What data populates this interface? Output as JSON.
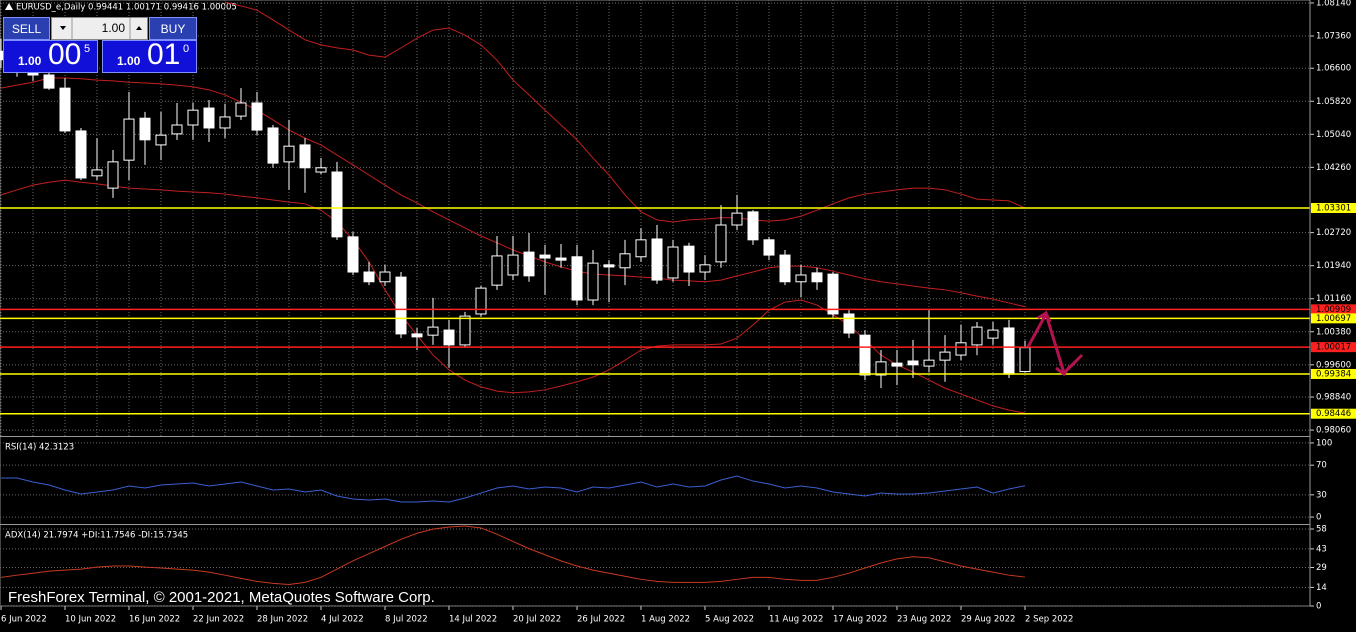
{
  "header": {
    "symbol_line": "EURUSD_e,Daily  0.99441 1.00171 0.99416 1.00005"
  },
  "trade_panel": {
    "sell": "SELL",
    "buy": "BUY",
    "lot": "1.00",
    "bid": {
      "big": "1.00",
      "pips": "00",
      "point": "5"
    },
    "ask": {
      "big": "1.00",
      "pips": "01",
      "point": "0"
    }
  },
  "watermark": "FreshForex Terminal, © 2001-2021, MetaQuotes Software Corp.",
  "chart_data": [
    {
      "type": "candlestick",
      "categories": [
        "6 Jun 2022",
        null,
        null,
        null,
        "10 Jun 2022",
        null,
        null,
        null,
        "16 Jun 2022",
        null,
        null,
        null,
        "22 Jun 2022",
        null,
        null,
        null,
        "28 Jun 2022",
        null,
        null,
        null,
        "4 Jul 2022",
        null,
        null,
        null,
        "8 Jul 2022",
        null,
        null,
        null,
        "14 Jul 2022",
        null,
        null,
        null,
        "20 Jul 2022",
        null,
        null,
        null,
        "26 Jul 2022",
        null,
        null,
        null,
        "1 Aug 2022",
        null,
        null,
        null,
        "5 Aug 2022",
        null,
        null,
        null,
        "11 Aug 2022",
        null,
        null,
        null,
        "17 Aug 2022",
        null,
        null,
        null,
        "23 Aug 2022",
        null,
        null,
        null,
        "29 Aug 2022",
        null,
        null,
        null,
        "2 Sep 2022"
      ],
      "open": [
        1.07,
        1.068,
        1.066,
        1.0644,
        1.0613,
        1.0512,
        1.0406,
        1.0377,
        1.0443,
        1.0542,
        1.0479,
        1.0505,
        1.0526,
        1.0566,
        1.0519,
        1.0547,
        1.0578,
        1.0519,
        1.0439,
        1.0479,
        1.0415,
        1.0415,
        1.0262,
        1.0179,
        1.0156,
        1.0167,
        1.0033,
        1.003,
        1.0042,
        1.0007,
        1.008,
        1.0148,
        1.0172,
        1.0226,
        1.0219,
        1.0212,
        1.0215,
        1.0113,
        1.0196,
        1.0189,
        1.0215,
        1.0257,
        1.0165,
        1.024,
        1.0179,
        1.0203,
        1.029,
        1.0321,
        1.0255,
        1.0219,
        1.0156,
        1.0177,
        1.0174,
        1.008,
        1.003,
        0.9936,
        0.9964,
        0.9969,
        0.9957,
        0.9971,
        0.9983,
        1.0007,
        1.0023,
        1.0047,
        0.99441
      ],
      "high": [
        1.073,
        1.07,
        1.068,
        1.0656,
        1.0637,
        1.0519,
        1.0495,
        1.0467,
        1.0604,
        1.0557,
        1.0557,
        1.0578,
        1.0578,
        1.0585,
        1.0576,
        1.0613,
        1.0604,
        1.0526,
        1.0538,
        1.0495,
        1.0448,
        1.0439,
        1.0274,
        1.0203,
        1.0196,
        1.0179,
        1.0047,
        1.0118,
        1.0066,
        1.0085,
        1.0146,
        1.0264,
        1.0264,
        1.0271,
        1.0243,
        1.0245,
        1.0243,
        1.0231,
        1.0207,
        1.0255,
        1.0283,
        1.029,
        1.0255,
        1.0248,
        1.0219,
        1.0337,
        1.0361,
        1.0325,
        1.0262,
        1.0231,
        1.0196,
        1.0189,
        1.0179,
        1.0089,
        1.0042,
        0.9995,
        0.9995,
        1.0019,
        1.0089,
        1.003,
        1.0054,
        1.0061,
        1.0061,
        1.0066,
        1.00171
      ],
      "low": [
        1.066,
        1.064,
        1.063,
        1.0609,
        1.0507,
        1.0396,
        1.0396,
        1.0354,
        1.0396,
        1.0432,
        1.0443,
        1.0491,
        1.0491,
        1.0486,
        1.0495,
        1.0538,
        1.0502,
        1.0425,
        1.0373,
        1.0366,
        1.041,
        1.0255,
        1.0172,
        1.0148,
        1.0146,
        1.0023,
        0.9995,
        1.0007,
        0.9953,
        1.0,
        1.0073,
        1.0137,
        1.016,
        1.0156,
        1.0125,
        1.0189,
        1.0101,
        1.0101,
        1.0108,
        1.0148,
        1.0203,
        1.0151,
        1.0156,
        1.0146,
        1.016,
        1.0189,
        1.0278,
        1.0243,
        1.0207,
        1.0148,
        1.012,
        1.0137,
        1.0071,
        1.0023,
        0.9924,
        0.9905,
        0.9912,
        0.9929,
        0.9943,
        0.992,
        0.9971,
        0.9983,
        1.0007,
        0.9929,
        0.99416
      ],
      "close": [
        1.068,
        1.066,
        1.0644,
        1.0613,
        1.0512,
        1.0401,
        1.042,
        1.0439,
        1.054,
        1.0491,
        1.0502,
        1.0526,
        1.0561,
        1.0519,
        1.0545,
        1.0578,
        1.0514,
        1.0436,
        1.0476,
        1.0425,
        1.0425,
        1.0262,
        1.0179,
        1.0156,
        1.0179,
        1.0033,
        1.0026,
        1.0049,
        1.0007,
        1.0075,
        1.0141,
        1.0217,
        1.0219,
        1.017,
        1.0212,
        1.0207,
        1.0113,
        1.02,
        1.0191,
        1.0222,
        1.0255,
        1.016,
        1.0238,
        1.0179,
        1.0196,
        1.029,
        1.0318,
        1.0255,
        1.0219,
        1.0156,
        1.0172,
        1.0156,
        1.008,
        1.0035,
        0.9936,
        0.9967,
        0.9957,
        0.996,
        0.9971,
        0.999,
        1.0012,
        1.0049,
        1.0042,
        0.9938,
        1.00005
      ],
      "up_color": "#000000",
      "down_color": "#ffffff",
      "wick_color": "#ffffff",
      "lines": [
        {
          "color": "#c41e1e",
          "values": [
            null,
            null,
            null,
            null,
            null,
            null,
            null,
            null,
            null,
            null,
            null,
            null,
            null,
            null,
            1.0816,
            1.0807,
            1.0797,
            1.0774,
            1.075,
            1.0727,
            1.0715,
            1.0708,
            1.0703,
            1.0691,
            1.0686,
            1.0708,
            1.0731,
            1.075,
            1.0755,
            1.0738,
            1.0715,
            1.0679,
            1.0632,
            1.0597,
            1.0561,
            1.0526,
            1.0491,
            1.0448,
            1.0408,
            1.0361,
            1.0321,
            1.0302,
            1.0297,
            1.0302,
            1.0304,
            1.0307,
            1.0307,
            1.0302,
            1.0299,
            1.0302,
            1.0311,
            1.0325,
            1.034,
            1.0354,
            1.0363,
            1.0368,
            1.0373,
            1.0377,
            1.0377,
            1.0373,
            1.0363,
            1.0351,
            1.0349,
            1.0347,
            1.033
          ]
        },
        {
          "color": "#c41e1e",
          "values": [
            1.0613,
            1.062,
            1.0627,
            1.0637,
            1.0637,
            1.0635,
            1.0632,
            1.063,
            1.0627,
            1.0625,
            1.0623,
            1.062,
            1.0616,
            1.0609,
            1.0597,
            1.058,
            1.0561,
            1.0538,
            1.0514,
            1.0495,
            1.0479,
            1.0455,
            1.0432,
            1.0408,
            1.0384,
            1.0361,
            1.0342,
            1.0321,
            1.0302,
            1.0283,
            1.0264,
            1.0248,
            1.0231,
            1.0217,
            1.0203,
            1.0191,
            1.0181,
            1.0174,
            1.0172,
            1.017,
            1.0167,
            1.0165,
            1.016,
            1.0158,
            1.0156,
            1.016,
            1.017,
            1.0179,
            1.0189,
            1.0193,
            1.0193,
            1.0189,
            1.0181,
            1.0172,
            1.0163,
            1.0156,
            1.0151,
            1.0146,
            1.0141,
            1.0137,
            1.013,
            1.0122,
            1.0115,
            1.0106,
            1.0097
          ]
        },
        {
          "color": "#c41e1e",
          "values": [
            1.0361,
            1.0373,
            1.0384,
            1.0391,
            1.0396,
            1.0391,
            1.0387,
            1.0382,
            1.0377,
            1.0375,
            1.0373,
            1.037,
            1.0368,
            1.0366,
            1.0363,
            1.0358,
            1.0354,
            1.0349,
            1.0344,
            1.034,
            1.0325,
            1.0297,
            1.0255,
            1.0203,
            1.0137,
            1.0078,
            1.003,
            0.9983,
            0.9948,
            0.9924,
            0.9908,
            0.9898,
            0.9894,
            0.9896,
            0.9901,
            0.991,
            0.992,
            0.9931,
            0.9948,
            0.9971,
            0.9995,
            1.0004,
            1.0007,
            1.0007,
            1.0007,
            1.0009,
            1.0023,
            1.0054,
            1.0089,
            1.0108,
            1.0113,
            1.0101,
            1.0078,
            1.0054,
            1.0019,
            0.9983,
            0.996,
            0.9943,
            0.9924,
            0.9905,
            0.9891,
            0.9877,
            0.9863,
            0.9853,
            0.9846
          ]
        }
      ],
      "levels": [
        {
          "value": 1.03301,
          "color": "#ffff00"
        },
        {
          "value": 1.00909,
          "color": "#ff2020"
        },
        {
          "value": 1.00697,
          "color": "#ffff00"
        },
        {
          "value": 1.00017,
          "color": "#ff2020"
        },
        {
          "value": 0.99384,
          "color": "#ffff00"
        },
        {
          "value": 0.98446,
          "color": "#ffff00"
        }
      ],
      "ylim": [
        0.9792,
        1.0821
      ],
      "yticks": [
        {
          "value": 1.0814,
          "label": "1.08140"
        },
        {
          "value": 1.0736,
          "label": "1.07360"
        },
        {
          "value": 1.066,
          "label": "1.06600"
        },
        {
          "value": 1.0582,
          "label": "1.05820"
        },
        {
          "value": 1.0504,
          "label": "1.05040"
        },
        {
          "value": 1.0426,
          "label": "1.04260"
        },
        {
          "value": 1.0272,
          "label": "1.02720"
        },
        {
          "value": 1.0194,
          "label": "1.01940"
        },
        {
          "value": 1.0116,
          "label": "1.01160"
        },
        {
          "value": 1.0038,
          "label": "1.00380"
        },
        {
          "value": 0.996,
          "label": "0.99600"
        },
        {
          "value": 0.9884,
          "label": "0.98840"
        },
        {
          "value": 0.9806,
          "label": "0.98060"
        }
      ],
      "grid": true
    },
    {
      "type": "line",
      "title": "RSI(14) 42.3123",
      "color": "#3a5fd0",
      "values": [
        52.7,
        52.7,
        47.3,
        43.2,
        36.5,
        31.1,
        33.8,
        36.5,
        41.9,
        39.2,
        43.2,
        44.6,
        45.9,
        41.9,
        44.6,
        47.3,
        41.9,
        36.5,
        37.8,
        33.8,
        36.5,
        28.4,
        24.3,
        23.0,
        24.3,
        20.3,
        20.3,
        21.6,
        20.3,
        25.7,
        32.4,
        39.2,
        41.9,
        37.8,
        40.5,
        39.2,
        33.8,
        40.5,
        39.2,
        43.2,
        47.3,
        40.5,
        44.6,
        40.5,
        41.9,
        50.0,
        55.4,
        48.6,
        44.6,
        39.2,
        41.9,
        39.2,
        33.8,
        31.1,
        28.4,
        32.4,
        31.1,
        31.1,
        32.4,
        35.1,
        37.8,
        40.5,
        32.4,
        37.8,
        42.3123
      ],
      "ylim": [
        -8,
        108
      ],
      "yticks": [
        100,
        70,
        30,
        0
      ],
      "grid": true
    },
    {
      "type": "line",
      "title": "ADX(14) 21.7974 +DI:11.7546 -DI:15.7345",
      "color": "#c83a22",
      "values": [
        21.6,
        23.2,
        24.7,
        26.3,
        27.0,
        27.8,
        29.3,
        30.1,
        30.1,
        29.3,
        28.6,
        27.8,
        27.0,
        25.5,
        23.2,
        20.8,
        18.5,
        17.0,
        16.2,
        17.8,
        21.6,
        27.8,
        34.0,
        39.4,
        44.8,
        50.2,
        54.8,
        57.9,
        59.5,
        60.2,
        58.7,
        54.1,
        48.6,
        43.2,
        38.6,
        34.0,
        30.1,
        27.0,
        24.7,
        22.4,
        20.1,
        18.5,
        17.8,
        17.8,
        17.8,
        18.5,
        20.1,
        21.6,
        21.6,
        20.1,
        19.3,
        19.3,
        21.6,
        24.7,
        28.6,
        32.4,
        35.5,
        37.1,
        36.3,
        33.2,
        30.1,
        27.8,
        25.5,
        23.2,
        21.7974
      ],
      "ylim": [
        0,
        61
      ],
      "yticks": [
        58,
        43,
        29,
        14,
        0
      ],
      "grid": true
    }
  ]
}
